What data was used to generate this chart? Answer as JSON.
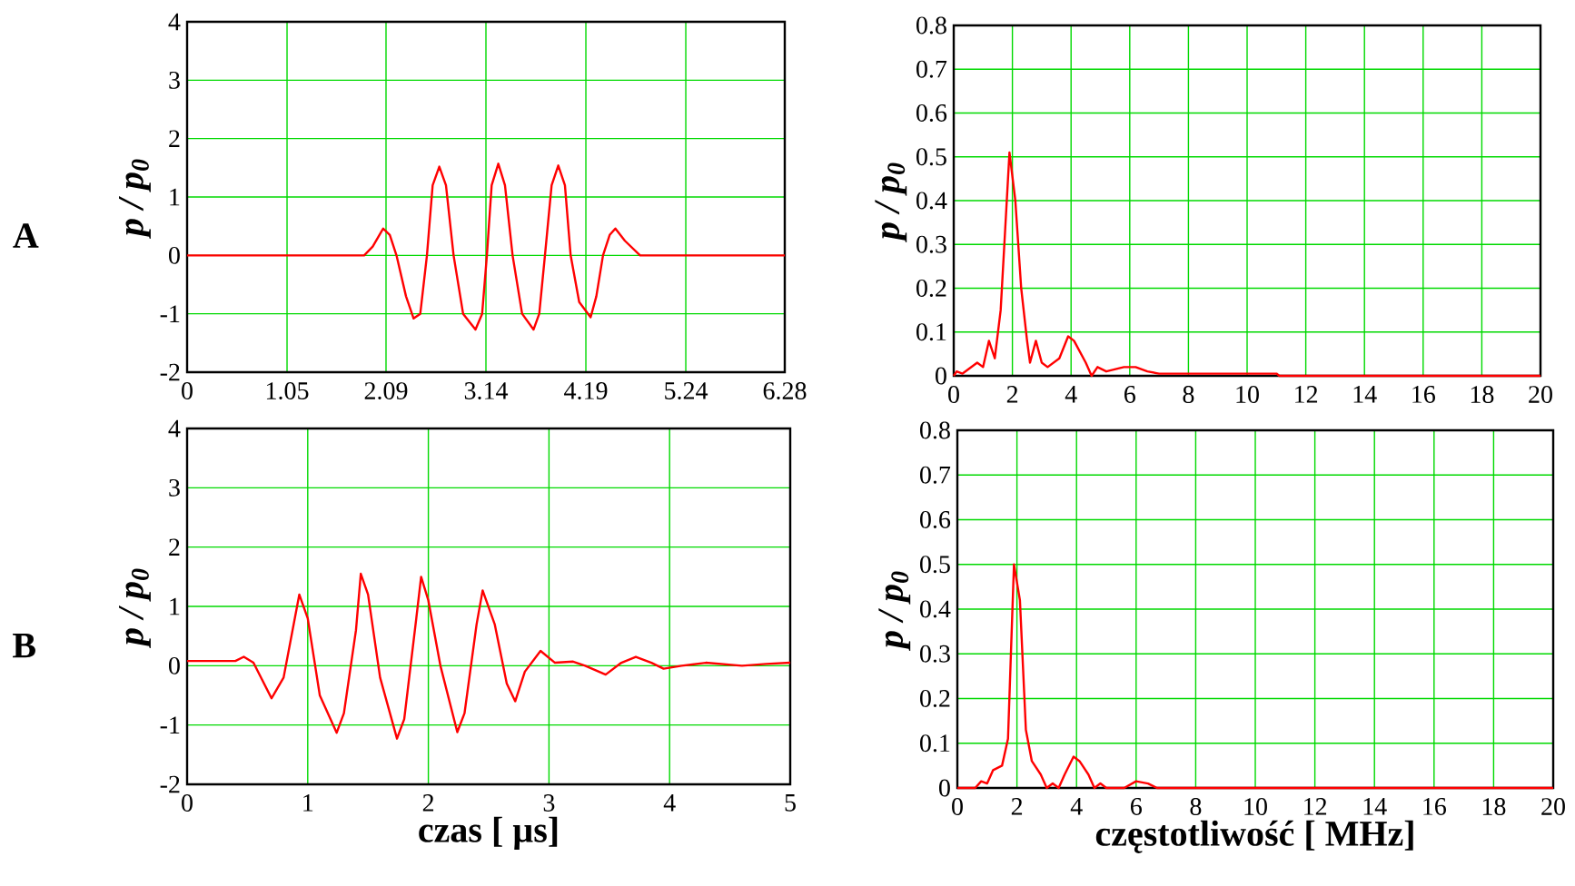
{
  "chart_data": [
    {
      "type": "line",
      "ylabel": "p / p$_{0}$",
      "annotations": [
        "A"
      ],
      "color": "#ff0000",
      "grid": true,
      "xlim": [
        0,
        6.28
      ],
      "ylim": [
        -2,
        4
      ],
      "xticks": [
        0,
        1.05,
        2.09,
        3.14,
        4.19,
        5.24,
        6.28
      ],
      "yticks": [
        -2,
        -1,
        0,
        1,
        2,
        3,
        4
      ],
      "x": [
        0,
        1.86,
        1.95,
        2.06,
        2.13,
        2.2,
        2.3,
        2.38,
        2.45,
        2.52,
        2.58,
        2.65,
        2.72,
        2.8,
        2.9,
        3.03,
        3.1,
        3.15,
        3.2,
        3.27,
        3.34,
        3.42,
        3.52,
        3.64,
        3.7,
        3.76,
        3.83,
        3.9,
        3.97,
        4.03,
        4.12,
        4.24,
        4.3,
        4.37,
        4.44,
        4.5,
        4.6,
        4.76,
        6.28
      ],
      "values": [
        0,
        0,
        0.15,
        0.46,
        0.35,
        0,
        -0.7,
        -1.08,
        -1.0,
        0,
        1.2,
        1.52,
        1.2,
        0,
        -1.0,
        -1.27,
        -1.0,
        0,
        1.2,
        1.57,
        1.2,
        0,
        -1.0,
        -1.27,
        -1.0,
        0,
        1.2,
        1.54,
        1.2,
        0,
        -0.8,
        -1.06,
        -0.7,
        0,
        0.35,
        0.46,
        0.25,
        0,
        0
      ]
    },
    {
      "type": "line",
      "ylabel": "p / p$_{0}$",
      "color": "#ff0000",
      "grid": true,
      "xlim": [
        0,
        20
      ],
      "ylim": [
        0,
        0.8
      ],
      "xticks": [
        0,
        2,
        4,
        6,
        8,
        10,
        12,
        14,
        16,
        18,
        20
      ],
      "yticks": [
        0,
        0.1,
        0.2,
        0.3,
        0.4,
        0.5,
        0.6,
        0.7,
        0.8
      ],
      "x": [
        0,
        0.1,
        0.3,
        0.8,
        1.0,
        1.2,
        1.4,
        1.6,
        1.9,
        2.1,
        2.3,
        2.5,
        2.6,
        2.8,
        3.0,
        3.2,
        3.6,
        3.9,
        4.1,
        4.5,
        4.7,
        4.9,
        5.2,
        5.5,
        5.8,
        6.2,
        6.6,
        7,
        11,
        11.1,
        20
      ],
      "values": [
        0,
        0.01,
        0.005,
        0.03,
        0.02,
        0.08,
        0.04,
        0.15,
        0.51,
        0.4,
        0.2,
        0.08,
        0.03,
        0.08,
        0.03,
        0.02,
        0.04,
        0.09,
        0.08,
        0.03,
        0,
        0.02,
        0.01,
        0.015,
        0.02,
        0.02,
        0.01,
        0.005,
        0.005,
        0,
        0
      ]
    },
    {
      "type": "line",
      "xlabel": "czas [ µs]",
      "ylabel": "p / p$_{0}$",
      "annotations": [
        "B"
      ],
      "color": "#ff0000",
      "grid": true,
      "xlim": [
        0,
        5
      ],
      "ylim": [
        -2,
        4
      ],
      "xticks": [
        0,
        1,
        2,
        3,
        4,
        5
      ],
      "yticks": [
        -2,
        -1,
        0,
        1,
        2,
        3,
        4
      ],
      "x": [
        0,
        0.4,
        0.47,
        0.55,
        0.7,
        0.8,
        0.93,
        1.0,
        1.1,
        1.24,
        1.3,
        1.4,
        1.44,
        1.5,
        1.6,
        1.74,
        1.8,
        1.9,
        1.94,
        2.0,
        2.1,
        2.24,
        2.3,
        2.4,
        2.45,
        2.55,
        2.65,
        2.72,
        2.8,
        2.93,
        3.05,
        3.2,
        3.3,
        3.47,
        3.6,
        3.72,
        3.85,
        3.95,
        4.1,
        4.3,
        4.6,
        4.8,
        5.0
      ],
      "values": [
        0.08,
        0.08,
        0.15,
        0.05,
        -0.55,
        -0.2,
        1.2,
        0.8,
        -0.5,
        -1.13,
        -0.8,
        0.6,
        1.55,
        1.2,
        -0.2,
        -1.23,
        -0.9,
        0.8,
        1.5,
        1.1,
        0,
        -1.12,
        -0.8,
        0.7,
        1.27,
        0.7,
        -0.3,
        -0.6,
        -0.1,
        0.25,
        0.05,
        0.07,
        0,
        -0.15,
        0.05,
        0.15,
        0.05,
        -0.05,
        0,
        0.05,
        0,
        0.03,
        0.05
      ]
    },
    {
      "type": "line",
      "xlabel": "częstotliwość  [ MHz]",
      "ylabel": "p / p$_{0}$",
      "color": "#ff0000",
      "grid": true,
      "xlim": [
        0,
        20
      ],
      "ylim": [
        0,
        0.8
      ],
      "xticks": [
        0,
        2,
        4,
        6,
        8,
        10,
        12,
        14,
        16,
        18,
        20
      ],
      "yticks": [
        0,
        0.1,
        0.2,
        0.3,
        0.4,
        0.5,
        0.6,
        0.7,
        0.8
      ],
      "x": [
        0,
        0.6,
        0.8,
        1.0,
        1.2,
        1.5,
        1.7,
        1.9,
        2.1,
        2.3,
        2.5,
        2.8,
        3.0,
        3.2,
        3.4,
        3.6,
        3.9,
        4.1,
        4.4,
        4.6,
        4.8,
        5.0,
        5.6,
        6.0,
        6.4,
        6.7,
        20
      ],
      "values": [
        0,
        0,
        0.015,
        0.01,
        0.04,
        0.05,
        0.11,
        0.5,
        0.42,
        0.13,
        0.06,
        0.03,
        0,
        0.01,
        0,
        0.03,
        0.07,
        0.06,
        0.03,
        0,
        0.01,
        0,
        0,
        0.015,
        0.01,
        0,
        0
      ]
    }
  ]
}
